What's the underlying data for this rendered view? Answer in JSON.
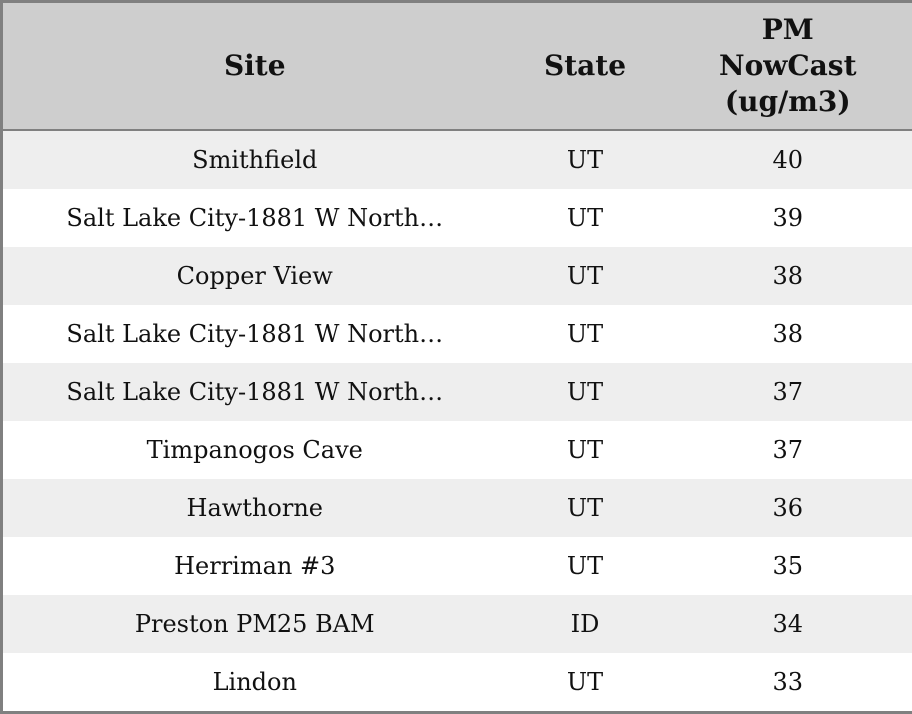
{
  "colors": {
    "header_bg": "#cecece",
    "stripe_row_bg": "#eeeeee",
    "plain_row_bg": "#ffffff",
    "border": "#808080",
    "text": "#111111"
  },
  "table": {
    "headers": {
      "site": "Site",
      "state": "State",
      "pm": "PM NowCast (ug/m3)"
    },
    "rows": [
      {
        "site": "Smithfield",
        "state": "UT",
        "pm": "40"
      },
      {
        "site": "Salt Lake City-1881 W North…",
        "state": "UT",
        "pm": "39"
      },
      {
        "site": "Copper View",
        "state": "UT",
        "pm": "38"
      },
      {
        "site": "Salt Lake City-1881 W North…",
        "state": "UT",
        "pm": "38"
      },
      {
        "site": "Salt Lake City-1881 W North…",
        "state": "UT",
        "pm": "37"
      },
      {
        "site": "Timpanogos Cave",
        "state": "UT",
        "pm": "37"
      },
      {
        "site": "Hawthorne",
        "state": "UT",
        "pm": "36"
      },
      {
        "site": "Herriman #3",
        "state": "UT",
        "pm": "35"
      },
      {
        "site": "Preston PM25 BAM",
        "state": "ID",
        "pm": "34"
      },
      {
        "site": "Lindon",
        "state": "UT",
        "pm": "33"
      }
    ]
  },
  "chart_data": {
    "type": "table",
    "title": "",
    "columns": [
      "Site",
      "State",
      "PM NowCast (ug/m3)"
    ],
    "rows": [
      [
        "Smithfield",
        "UT",
        40
      ],
      [
        "Salt Lake City-1881 W North…",
        "UT",
        39
      ],
      [
        "Copper View",
        "UT",
        38
      ],
      [
        "Salt Lake City-1881 W North…",
        "UT",
        38
      ],
      [
        "Salt Lake City-1881 W North…",
        "UT",
        37
      ],
      [
        "Timpanogos Cave",
        "UT",
        37
      ],
      [
        "Hawthorne",
        "UT",
        36
      ],
      [
        "Herriman #3",
        "UT",
        35
      ],
      [
        "Preston PM25 BAM",
        "ID",
        34
      ],
      [
        "Lindon",
        "UT",
        33
      ]
    ],
    "layout_hints": {
      "striped_rows": true,
      "first_data_row_shaded": true,
      "alignment": "center",
      "header_bold": true
    }
  }
}
